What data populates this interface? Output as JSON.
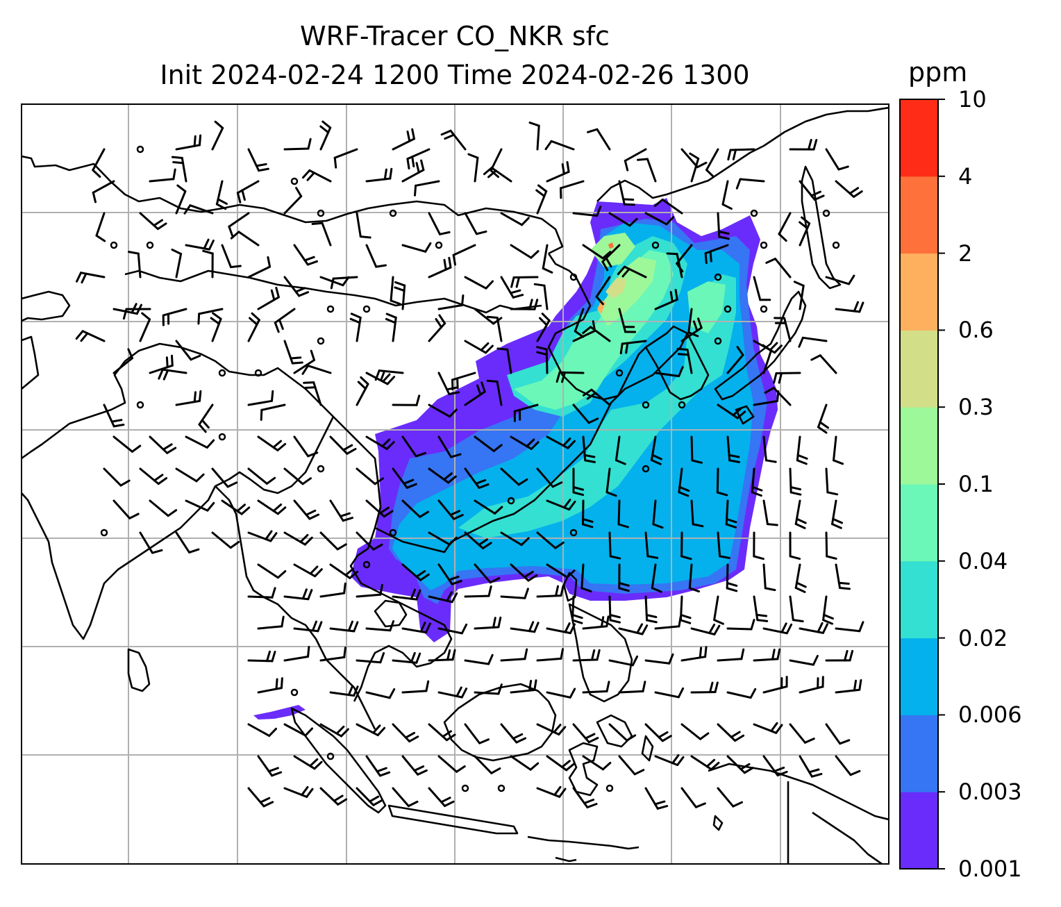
{
  "figure": {
    "title_line1": "WRF-Tracer CO_NKR sfc",
    "title_line2": "Init 2024-02-24 1200 Time 2024-02-26 1300"
  },
  "colorbar": {
    "units": "ppm",
    "levels": [
      "0.001",
      "0.003",
      "0.006",
      "0.02",
      "0.04",
      "0.1",
      "0.3",
      "0.6",
      "2",
      "4",
      "10"
    ],
    "colors": [
      "#6a2cfb",
      "#3675f3",
      "#04b1ec",
      "#34e0d2",
      "#6bf7b7",
      "#9df89a",
      "#d2df88",
      "#ffb05f",
      "#ff713b",
      "#ff2c17"
    ]
  },
  "map": {
    "background": "#ffffff",
    "coastline_color": "#000000",
    "gridline_color": "#b0b0b0",
    "wind_barb_color": "#000000",
    "gridlines": true
  }
}
